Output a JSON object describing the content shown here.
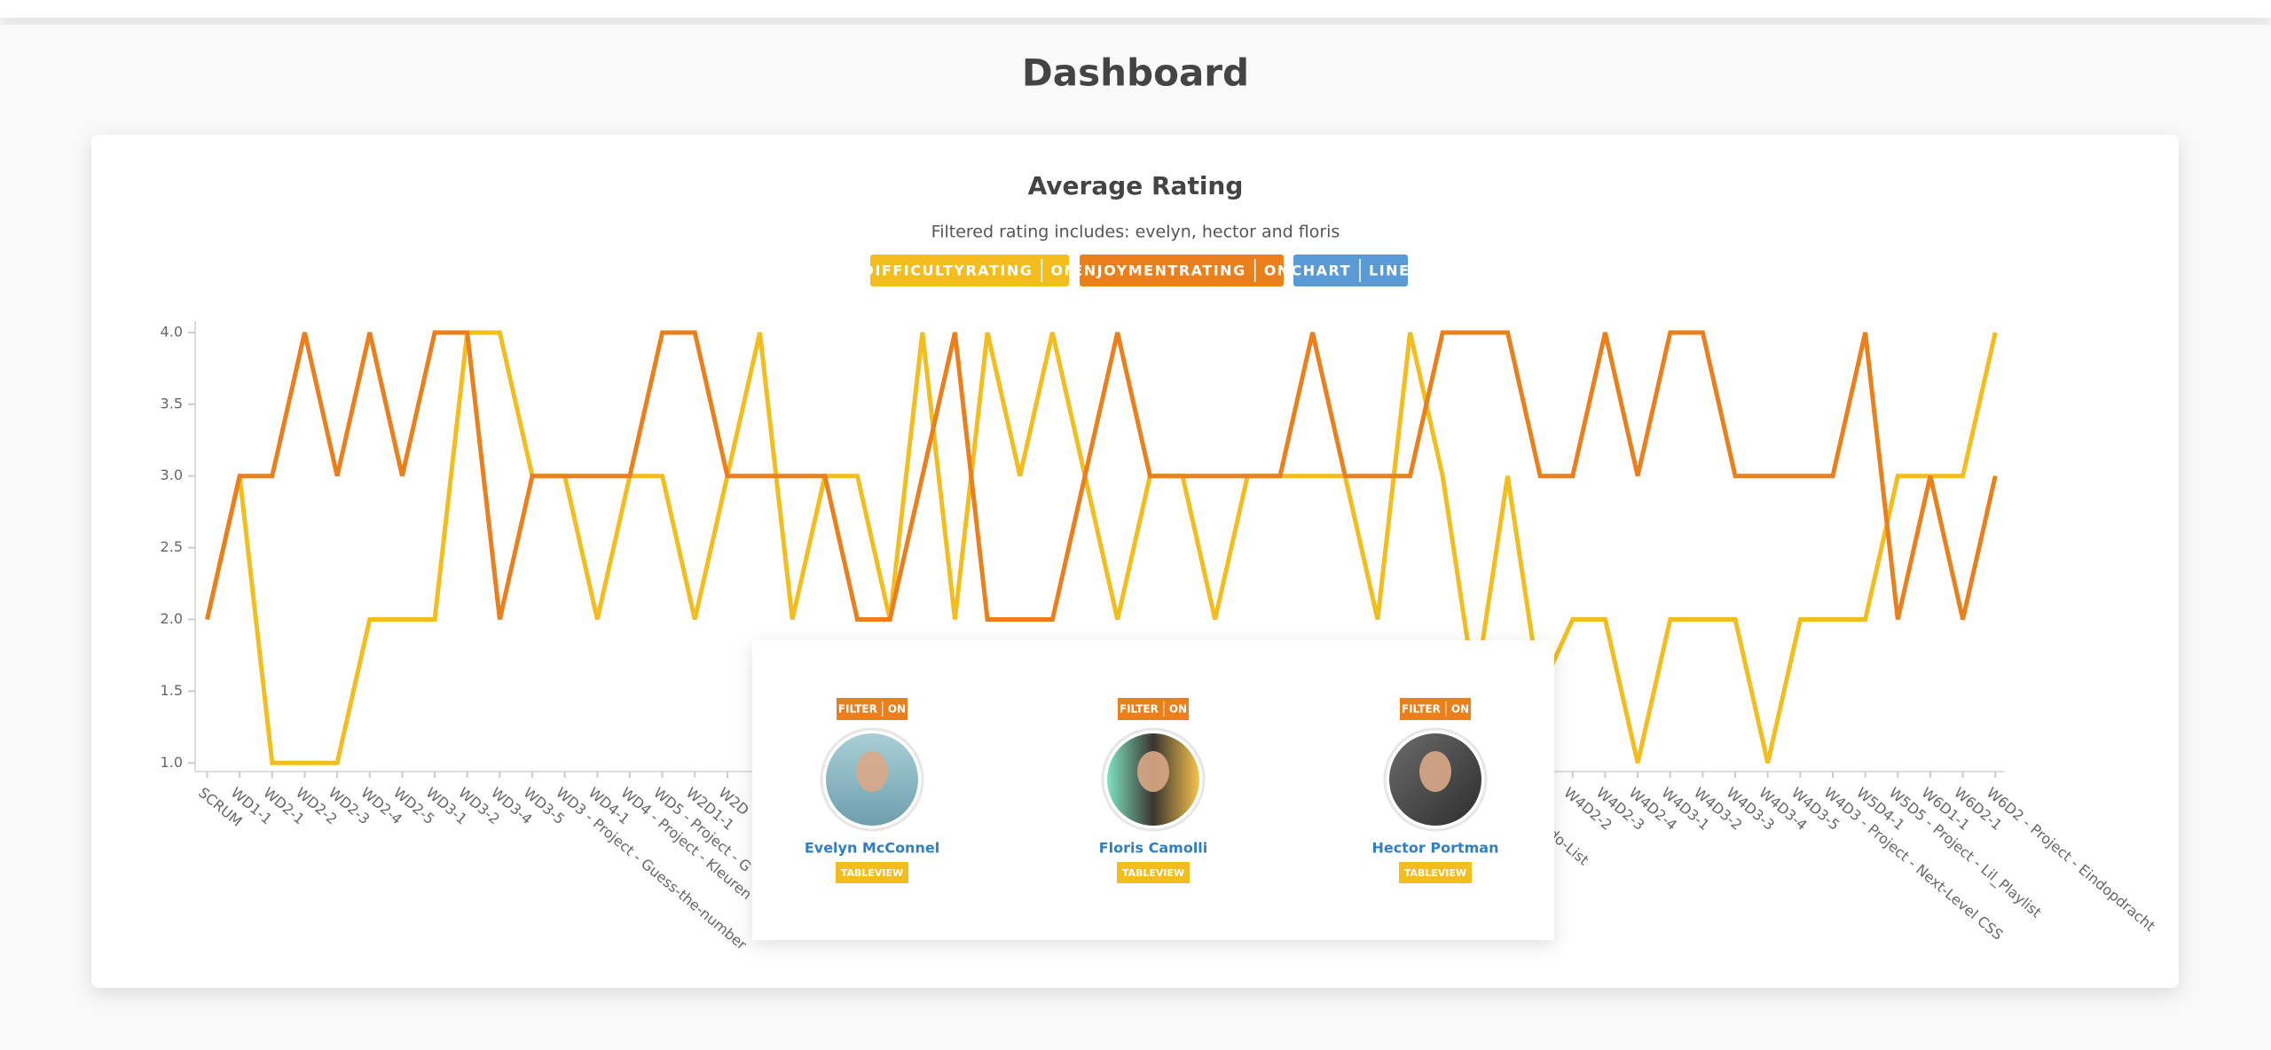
{
  "header": {
    "title": "Dashboard"
  },
  "chart_data": {
    "type": "line",
    "title": "Average Rating",
    "subtitle": "Filtered rating includes: evelyn, hector and floris",
    "chart_toggle": {
      "label": "CHART",
      "state": "LINE"
    },
    "categories": [
      "SCRUM",
      "WD1-1",
      "WD2-1",
      "WD2-2",
      "WD2-3",
      "WD2-4",
      "WD2-5",
      "WD3-1",
      "WD3-2",
      "WD3-4",
      "WD3-5",
      "WD3 - Project - Guess-the-number",
      "WD4-1",
      "WD4 - Project - Kleuren",
      "WD5 - Project - G",
      "W2D1-1",
      "W2D",
      null,
      null,
      null,
      null,
      null,
      null,
      null,
      null,
      null,
      null,
      null,
      null,
      null,
      null,
      null,
      null,
      null,
      null,
      null,
      null,
      null,
      null,
      null,
      "oject - Todo-List",
      "2-1",
      "W4D2-2",
      "W4D2-3",
      "W4D2-4",
      "W4D3-1",
      "W4D3-2",
      "W4D3-3",
      "W4D3-4",
      "W4D3-5",
      "W4D3 - Project - Next-Level CSS",
      "W5D4-1",
      "W5D5 - Project - Lil_Playlist",
      "W6D1-1",
      "W6D2-1",
      "W6D2 - Project - Eindopdracht"
    ],
    "series": [
      {
        "name": "DIFFICULTYRATING",
        "state": "ON",
        "color": "#f2bd1d",
        "values": [
          2,
          3,
          1,
          1,
          1,
          2,
          2,
          2,
          4,
          4,
          3,
          3,
          2,
          3,
          3,
          2,
          3,
          4,
          2,
          3,
          3,
          2,
          4,
          2,
          4,
          3,
          4,
          3,
          2,
          3,
          3,
          2,
          3,
          3,
          3,
          3,
          2,
          4,
          3,
          1.5,
          3,
          1.5,
          2,
          2,
          1,
          2,
          2,
          2,
          1,
          2,
          2,
          2,
          3,
          3,
          3,
          4
        ]
      },
      {
        "name": "ENJOYMENTRATING",
        "state": "ON",
        "color": "#ea7f1c",
        "values": [
          2,
          3,
          3,
          4,
          3,
          4,
          3,
          4,
          4,
          2,
          3,
          3,
          3,
          3,
          4,
          4,
          3,
          3,
          3,
          3,
          2,
          2,
          3,
          4,
          2,
          2,
          2,
          3,
          4,
          3,
          3,
          3,
          3,
          3,
          4,
          3,
          3,
          3,
          4,
          4,
          4,
          3,
          3,
          4,
          3,
          4,
          4,
          3,
          3,
          3,
          3,
          4,
          2,
          3,
          2,
          3
        ]
      }
    ],
    "ylim": [
      0.94,
      4.08
    ],
    "yticks": [
      {
        "value": 1,
        "label": "1.0"
      },
      1.5,
      {
        "value": 2,
        "label": "2.0"
      },
      2.5,
      {
        "value": 3,
        "label": "3.0"
      },
      3.5,
      {
        "value": 4,
        "label": "4.0"
      }
    ],
    "grid": false
  },
  "users": [
    {
      "name": "Evelyn McConnel",
      "filter": "FILTER",
      "filter_state": "ON",
      "button": "TABLEVIEW"
    },
    {
      "name": "Floris Camolli",
      "filter": "FILTER",
      "filter_state": "ON",
      "button": "TABLEVIEW"
    },
    {
      "name": "Hector Portman",
      "filter": "FILTER",
      "filter_state": "ON",
      "button": "TABLEVIEW"
    }
  ]
}
